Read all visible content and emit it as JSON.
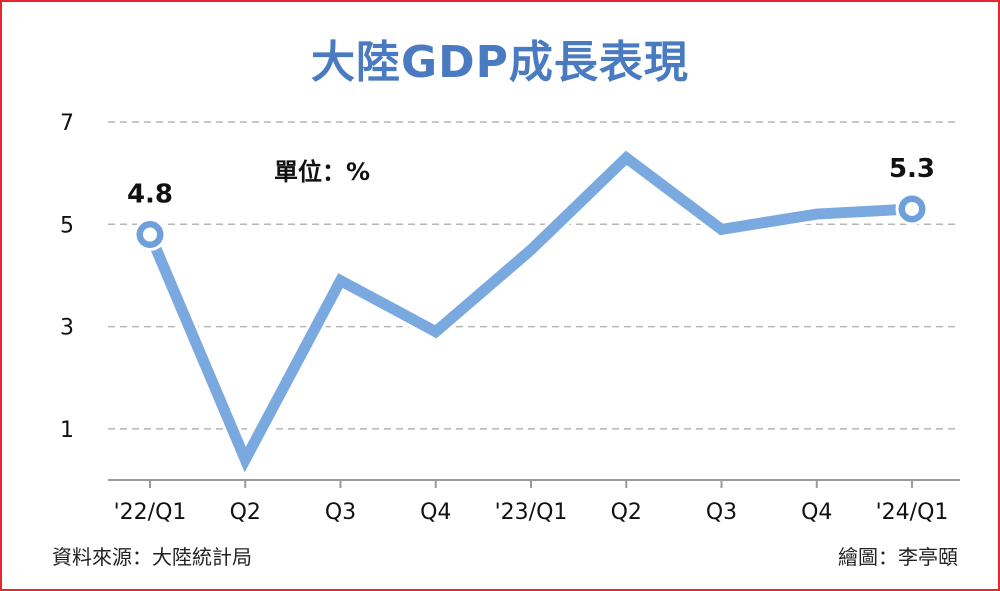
{
  "title": "大陸GDP成長表現",
  "chart_data": {
    "type": "line",
    "title": "大陸GDP成長表現",
    "unit_label": "單位：%",
    "categories": [
      "'22/Q1",
      "Q2",
      "Q3",
      "Q4",
      "'23/Q1",
      "Q2",
      "Q3",
      "Q4",
      "'24/Q1"
    ],
    "series": [
      {
        "values": [
          4.8,
          0.4,
          3.9,
          2.9,
          4.5,
          6.3,
          4.9,
          5.2,
          5.3
        ]
      }
    ],
    "ylim": [
      0,
      7
    ],
    "yticks": [
      "7",
      "5",
      "3",
      "1"
    ],
    "point_labels": [
      {
        "index": 0,
        "text": "4.8"
      },
      {
        "index": 8,
        "text": "5.3"
      }
    ],
    "grid": true,
    "colors": {
      "line": "#7aa9e0",
      "line_outline": "#ffffff",
      "grid": "#b5b5b5",
      "marker_fill": "#ffffff",
      "marker_stroke": "#6fa0dc"
    }
  },
  "footer": {
    "source": "資料來源：大陸統計局",
    "credit": "繪圖：李亭頤"
  }
}
